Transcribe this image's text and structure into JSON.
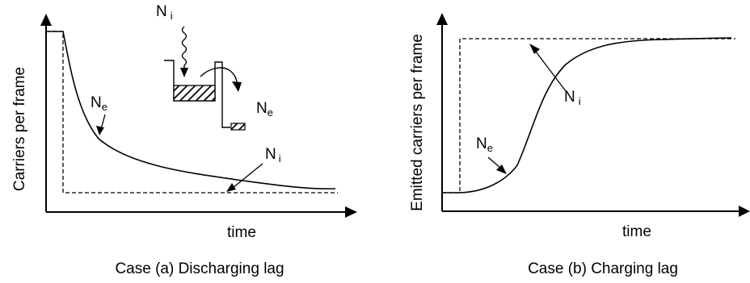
{
  "panel_a": {
    "y_axis_label": "Carriers per frame",
    "x_axis_label": "time",
    "caption": "Case (a) Discharging lag",
    "emitted_label": "N",
    "emitted_sub": "e",
    "injected_label": "N",
    "injected_sub": "i",
    "inset": {
      "incoming_label": "N",
      "incoming_sub": "i",
      "outgoing_label": "N",
      "outgoing_sub": "e"
    }
  },
  "panel_b": {
    "y_axis_label": "Emitted carriers per frame",
    "x_axis_label": "time",
    "caption": "Case (b) Charging lag",
    "emitted_label": "N",
    "emitted_sub": "e",
    "injected_label": "N",
    "injected_sub": "i"
  },
  "style": {
    "line_color": "#000000",
    "background": "#ffffff"
  }
}
